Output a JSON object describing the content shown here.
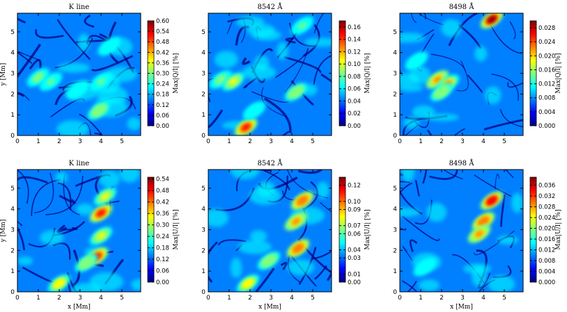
{
  "chart_data": [
    {
      "type": "heatmap",
      "title": "K line",
      "xlabel": "",
      "ylabel": "y [Mm]",
      "xlim": [
        0,
        5.9
      ],
      "ylim": [
        0,
        5.9
      ],
      "xticks": [
        "0",
        "1",
        "2",
        "3",
        "4",
        "5"
      ],
      "yticks": [
        "0",
        "1",
        "2",
        "3",
        "4",
        "5"
      ],
      "colorbar": {
        "label": "Max|Q/I| [%]",
        "range": [
          0,
          0.6
        ],
        "ticks": [
          "0.00",
          "0.06",
          "0.12",
          "0.18",
          "0.24",
          "0.30",
          "0.36",
          "0.42",
          "0.48",
          "0.54",
          "0.60"
        ]
      },
      "colormap": [
        "#00007f",
        "#0000ff",
        "#007fff",
        "#00ffff",
        "#7fff7f",
        "#ffff00",
        "#ff7f00",
        "#ff0000",
        "#7f0000"
      ],
      "background_level": 0.3,
      "features": [
        {
          "x": 1.0,
          "y": 2.8,
          "level": 0.5
        },
        {
          "x": 1.6,
          "y": 2.6,
          "level": 0.45
        },
        {
          "x": 2.9,
          "y": 2.2,
          "level": 0.4
        },
        {
          "x": 4.0,
          "y": 2.6,
          "level": 0.45
        },
        {
          "x": 3.9,
          "y": 1.2,
          "level": 0.55
        },
        {
          "x": 4.4,
          "y": 4.3,
          "level": 0.4
        }
      ]
    },
    {
      "type": "heatmap",
      "title": "8542 Å",
      "xlabel": "",
      "ylabel": "",
      "xlim": [
        0,
        5.9
      ],
      "ylim": [
        0,
        5.9
      ],
      "xticks": [
        "0",
        "1",
        "2",
        "3",
        "4",
        "5"
      ],
      "yticks": [
        "0",
        "1",
        "2",
        "3",
        "4",
        "5"
      ],
      "colorbar": {
        "label": "Max|Q/I| [%]",
        "range": [
          0,
          0.17
        ],
        "ticks": [
          "0.00",
          "0.02",
          "0.04",
          "0.06",
          "0.08",
          "0.10",
          "0.12",
          "0.14",
          "0.16"
        ]
      },
      "colormap": [
        "#00007f",
        "#0000ff",
        "#007fff",
        "#00ffff",
        "#7fff7f",
        "#ffff00",
        "#ff7f00",
        "#ff0000",
        "#7f0000"
      ],
      "background_level": 0.28,
      "features": [
        {
          "x": 0.6,
          "y": 2.7,
          "level": 0.5
        },
        {
          "x": 1.2,
          "y": 2.6,
          "level": 0.6
        },
        {
          "x": 1.8,
          "y": 0.4,
          "level": 0.9
        },
        {
          "x": 2.2,
          "y": 1.2,
          "level": 0.4
        },
        {
          "x": 4.2,
          "y": 2.1,
          "level": 0.55
        },
        {
          "x": 4.5,
          "y": 5.3,
          "level": 0.45
        }
      ]
    },
    {
      "type": "heatmap",
      "title": "8498 Å",
      "xlabel": "",
      "ylabel": "",
      "xlim": [
        0,
        5.9
      ],
      "ylim": [
        0,
        5.9
      ],
      "xticks": [
        "0",
        "1",
        "2",
        "3",
        "4",
        "5"
      ],
      "yticks": [
        "0",
        "1",
        "2",
        "3",
        "4",
        "5"
      ],
      "colorbar": {
        "label": "Max|Q/I| [%]",
        "range": [
          0,
          0.03
        ],
        "ticks": [
          "0.000",
          "0.004",
          "0.008",
          "0.012",
          "0.016",
          "0.020",
          "0.024",
          "0.028"
        ]
      },
      "colormap": [
        "#00007f",
        "#0000ff",
        "#007fff",
        "#00ffff",
        "#7fff7f",
        "#ffff00",
        "#ff7f00",
        "#ff0000",
        "#7f0000"
      ],
      "background_level": 0.28,
      "features": [
        {
          "x": 1.8,
          "y": 2.7,
          "level": 0.75
        },
        {
          "x": 2.3,
          "y": 2.5,
          "level": 0.7
        },
        {
          "x": 2.0,
          "y": 2.1,
          "level": 0.55
        },
        {
          "x": 4.4,
          "y": 5.6,
          "level": 0.95
        },
        {
          "x": 0.8,
          "y": 3.6,
          "level": 0.4
        }
      ]
    },
    {
      "type": "heatmap",
      "title": "K line",
      "xlabel": "x [Mm]",
      "ylabel": "y [Mm]",
      "xlim": [
        0,
        5.9
      ],
      "ylim": [
        0,
        5.9
      ],
      "xticks": [
        "0",
        "1",
        "2",
        "3",
        "4",
        "5"
      ],
      "yticks": [
        "0",
        "1",
        "2",
        "3",
        "4",
        "5"
      ],
      "colorbar": {
        "label": "Max|U/I| [%]",
        "range": [
          0,
          0.55
        ],
        "ticks": [
          "0.00",
          "0.06",
          "0.12",
          "0.18",
          "0.24",
          "0.30",
          "0.36",
          "0.42",
          "0.48",
          "0.54"
        ]
      },
      "colormap": [
        "#00007f",
        "#0000ff",
        "#007fff",
        "#00ffff",
        "#7fff7f",
        "#ffff00",
        "#ff7f00",
        "#ff0000",
        "#7f0000"
      ],
      "background_level": 0.3,
      "features": [
        {
          "x": 3.8,
          "y": 1.7,
          "level": 0.9
        },
        {
          "x": 4.0,
          "y": 3.8,
          "level": 0.85
        },
        {
          "x": 4.2,
          "y": 4.6,
          "level": 0.6
        },
        {
          "x": 4.0,
          "y": 2.7,
          "level": 0.6
        },
        {
          "x": 2.0,
          "y": 0.4,
          "level": 0.65
        },
        {
          "x": 3.3,
          "y": 1.4,
          "level": 0.55
        }
      ]
    },
    {
      "type": "heatmap",
      "title": "8542 Å",
      "xlabel": "x [Mm]",
      "ylabel": "",
      "xlim": [
        0,
        5.9
      ],
      "ylim": [
        0,
        5.9
      ],
      "xticks": [
        "0",
        "1",
        "2",
        "3",
        "4",
        "5"
      ],
      "yticks": [
        "0",
        "1",
        "2",
        "3",
        "4",
        "5"
      ],
      "colorbar": {
        "label": "Max|U/I| [%]",
        "range": [
          0,
          0.13
        ],
        "ticks": [
          "0.00",
          "0.01",
          "0.03",
          "0.04",
          "0.06",
          "0.07",
          "0.09",
          "0.10",
          "0.12"
        ]
      },
      "colormap": [
        "#00007f",
        "#0000ff",
        "#007fff",
        "#00ffff",
        "#7fff7f",
        "#ffff00",
        "#ff7f00",
        "#ff0000",
        "#7f0000"
      ],
      "background_level": 0.28,
      "features": [
        {
          "x": 4.5,
          "y": 4.4,
          "level": 0.8
        },
        {
          "x": 4.2,
          "y": 3.4,
          "level": 0.75
        },
        {
          "x": 4.3,
          "y": 2.1,
          "level": 0.8
        },
        {
          "x": 2.9,
          "y": 1.5,
          "level": 0.55
        },
        {
          "x": 1.9,
          "y": 0.4,
          "level": 0.65
        }
      ]
    },
    {
      "type": "heatmap",
      "title": "8498 Å",
      "xlabel": "x [Mm]",
      "ylabel": "",
      "xlim": [
        0,
        5.9
      ],
      "ylim": [
        0,
        5.9
      ],
      "xticks": [
        "0",
        "1",
        "2",
        "3",
        "4",
        "5"
      ],
      "yticks": [
        "0",
        "1",
        "2",
        "3",
        "4",
        "5"
      ],
      "colorbar": {
        "label": "Max|U/I| [%]",
        "range": [
          0,
          0.039
        ],
        "ticks": [
          "0.000",
          "0.004",
          "0.008",
          "0.012",
          "0.016",
          "0.020",
          "0.024",
          "0.028",
          "0.032",
          "0.036"
        ]
      },
      "colormap": [
        "#00007f",
        "#0000ff",
        "#007fff",
        "#00ffff",
        "#7fff7f",
        "#ffff00",
        "#ff7f00",
        "#ff0000",
        "#7f0000"
      ],
      "background_level": 0.3,
      "features": [
        {
          "x": 4.4,
          "y": 4.4,
          "level": 0.92
        },
        {
          "x": 4.0,
          "y": 3.4,
          "level": 0.8
        },
        {
          "x": 3.8,
          "y": 2.8,
          "level": 0.7
        },
        {
          "x": 1.2,
          "y": 1.2,
          "level": 0.4
        }
      ]
    }
  ]
}
